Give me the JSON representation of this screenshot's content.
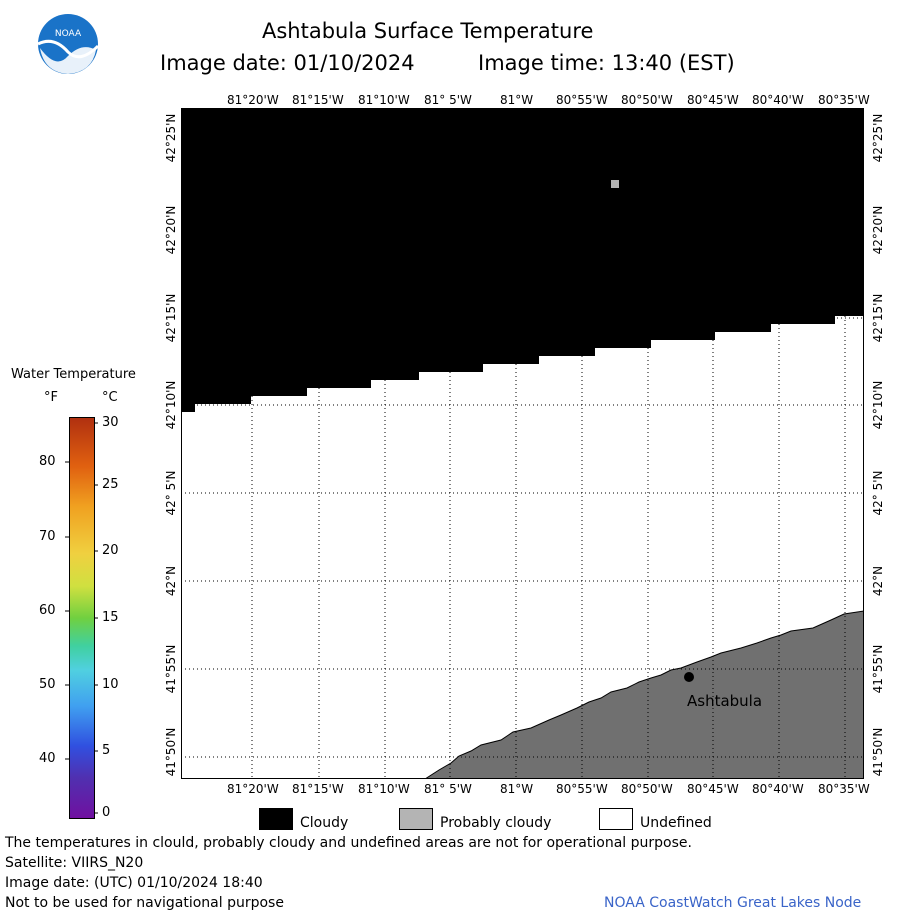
{
  "header": {
    "title": "Ashtabula Surface Temperature",
    "image_date": "Image date: 01/10/2024",
    "image_time": "Image time: 13:40 (EST)",
    "logo_text": "NOAA"
  },
  "map": {
    "lon_labels": [
      "81°20'W",
      "81°15'W",
      "81°10'W",
      "81° 5'W",
      "81°W",
      "80°55'W",
      "80°50'W",
      "80°45'W",
      "80°40'W",
      "80°35'W"
    ],
    "lat_labels": [
      "42°25'N",
      "42°20'N",
      "42°15'N",
      "42°10'N",
      "42° 5'N",
      "42°N",
      "41°55'N",
      "41°50'N"
    ],
    "place_label": "Ashtabula",
    "colors": {
      "cloudy": "#000000",
      "probably_cloudy": "#b4b4b4",
      "undefined": "#ffffff",
      "land": "#707070"
    }
  },
  "colorbar": {
    "title": "Water Temperature",
    "unit_f": "°F",
    "unit_c": "°C",
    "f_ticks": [
      "80",
      "70",
      "60",
      "50",
      "40"
    ],
    "c_ticks": [
      "30",
      "25",
      "20",
      "15",
      "10",
      "5",
      "0"
    ],
    "range_c": [
      0,
      30
    ]
  },
  "legend": {
    "cloudy": "Cloudy",
    "probably_cloudy": "Probably cloudy",
    "undefined": "Undefined"
  },
  "footer": {
    "note": "The temperatures in clould, probably cloudy and undefined areas are not for operational purpose.",
    "satellite": "Satellite: VIIRS_N20",
    "utc": "Image date: (UTC) 01/10/2024  18:40",
    "nav": "Not to be used for navigational purpose",
    "credit": "NOAA CoastWatch Great Lakes Node"
  }
}
